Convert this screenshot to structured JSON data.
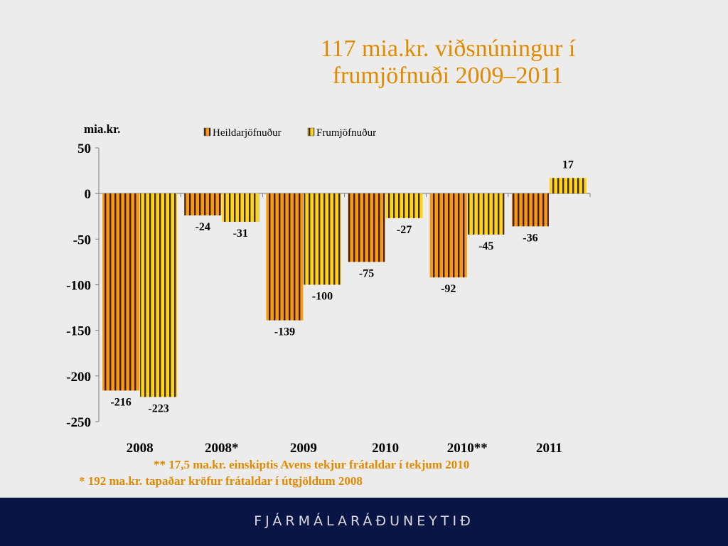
{
  "slide": {
    "title_line1": "117 mia.kr. viðsnúningur í",
    "title_line2": "frumjöfnuði 2009–2011",
    "footnote1": "** 17,5 ma.kr. einskiptis Avens tekjur frátaldar í tekjum 2010",
    "footnote2": "*  192 ma.kr. tapaðar kröfur frátaldar í útgjöldum 2008",
    "footer_brand": "FJÁRMÁLARÁÐUNEYTIÐ"
  },
  "chart_data": {
    "type": "bar",
    "unit_label": "mia.kr.",
    "categories": [
      "2008",
      "2008*",
      "2009",
      "2010",
      "2010**",
      "2011"
    ],
    "series": [
      {
        "name": "Heildarjöfnuður",
        "values": [
          -216,
          -24,
          -139,
          -75,
          -92,
          -36
        ],
        "colors": [
          "#f59a14",
          "#3d1e00"
        ]
      },
      {
        "name": "Frumjöfnuður",
        "values": [
          -223,
          -31,
          -100,
          -27,
          -45,
          17
        ],
        "colors": [
          "#ffd21c",
          "#3a2c00"
        ]
      }
    ],
    "ylim": [
      -250,
      50
    ],
    "yticks": [
      50,
      0,
      -50,
      -100,
      -150,
      -200,
      -250
    ],
    "legend_position": "top",
    "grid": false
  },
  "colors": {
    "title": "#e08a00",
    "footer_bg": "#081545"
  }
}
